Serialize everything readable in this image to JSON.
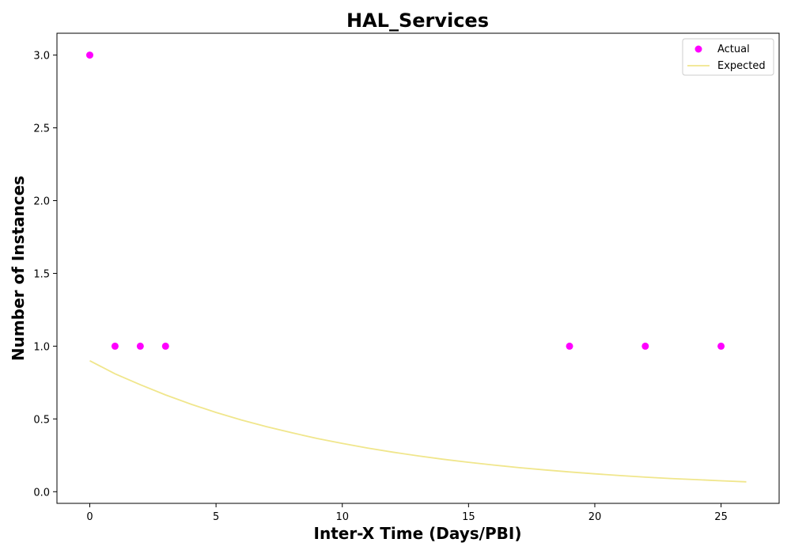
{
  "chart_data": {
    "type": "scatter",
    "title": "HAL_Services",
    "xlabel": "Inter-X Time (Days/PBI)",
    "ylabel": "Number of Instances",
    "xlim": [
      -1.3,
      27.3
    ],
    "ylim": [
      -0.08,
      3.15
    ],
    "xticks": [
      0,
      5,
      10,
      15,
      20,
      25
    ],
    "yticks": [
      0.0,
      0.5,
      1.0,
      1.5,
      2.0,
      2.5,
      3.0
    ],
    "grid": false,
    "legend_position": "top-right",
    "series": [
      {
        "name": "Actual",
        "kind": "scatter",
        "color": "#ff00ff",
        "points": [
          {
            "x": 0,
            "y": 3
          },
          {
            "x": 1,
            "y": 1
          },
          {
            "x": 2,
            "y": 1
          },
          {
            "x": 3,
            "y": 1
          },
          {
            "x": 19,
            "y": 1
          },
          {
            "x": 22,
            "y": 1
          },
          {
            "x": 25,
            "y": 1
          }
        ]
      },
      {
        "name": "Expected",
        "kind": "line",
        "color": "#f0e68c",
        "points": [
          {
            "x": 0,
            "y": 0.9
          },
          {
            "x": 1,
            "y": 0.81
          },
          {
            "x": 2,
            "y": 0.735
          },
          {
            "x": 3,
            "y": 0.665
          },
          {
            "x": 4,
            "y": 0.602
          },
          {
            "x": 5,
            "y": 0.545
          },
          {
            "x": 6,
            "y": 0.493
          },
          {
            "x": 7,
            "y": 0.447
          },
          {
            "x": 8,
            "y": 0.405
          },
          {
            "x": 9,
            "y": 0.366
          },
          {
            "x": 10,
            "y": 0.332
          },
          {
            "x": 11,
            "y": 0.3
          },
          {
            "x": 12,
            "y": 0.272
          },
          {
            "x": 13,
            "y": 0.246
          },
          {
            "x": 14,
            "y": 0.223
          },
          {
            "x": 15,
            "y": 0.202
          },
          {
            "x": 16,
            "y": 0.183
          },
          {
            "x": 17,
            "y": 0.165
          },
          {
            "x": 18,
            "y": 0.15
          },
          {
            "x": 19,
            "y": 0.136
          },
          {
            "x": 20,
            "y": 0.123
          },
          {
            "x": 21,
            "y": 0.111
          },
          {
            "x": 22,
            "y": 0.1
          },
          {
            "x": 23,
            "y": 0.091
          },
          {
            "x": 24,
            "y": 0.083
          },
          {
            "x": 25,
            "y": 0.075
          },
          {
            "x": 26,
            "y": 0.068
          }
        ]
      }
    ]
  }
}
